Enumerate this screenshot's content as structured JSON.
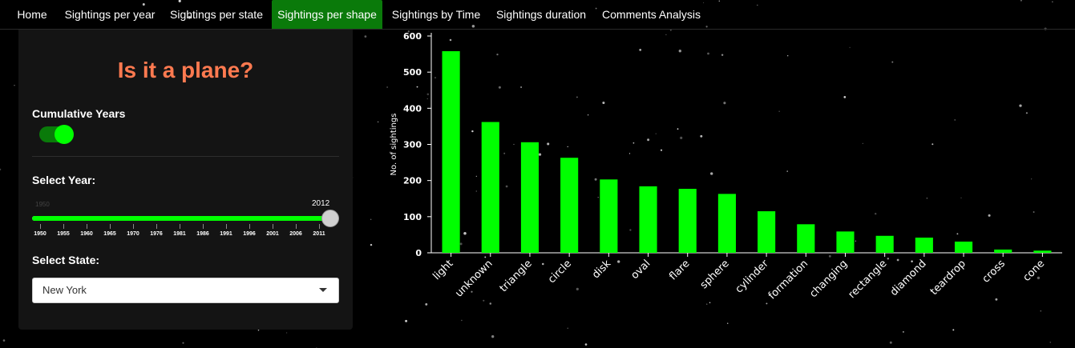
{
  "nav": {
    "tabs": [
      {
        "label": "Home"
      },
      {
        "label": "Sightings per year"
      },
      {
        "label": "Sightings per state"
      },
      {
        "label": "Sightings per shape",
        "active": true
      },
      {
        "label": "Sightings by Time"
      },
      {
        "label": "Sightings duration"
      },
      {
        "label": "Comments Analysis"
      }
    ]
  },
  "sidebar": {
    "title": "Is it a plane?",
    "cumulative_label": "Cumulative Years",
    "cumulative_on": true,
    "year_label": "Select Year:",
    "year_min_label": "1950",
    "year_value": "2012",
    "year_range": [
      1950,
      2014
    ],
    "year_ticks": [
      "1950",
      "1955",
      "1960",
      "1965",
      "1970",
      "1976",
      "1981",
      "1986",
      "1991",
      "1996",
      "2001",
      "2006",
      "2011"
    ],
    "state_label": "Select State:",
    "state_value": "New York"
  },
  "colors": {
    "accent_green": "#00ff00",
    "active_tab": "#0a7a0a",
    "title": "#ff7a50"
  },
  "chart_data": {
    "type": "bar",
    "ylabel": "No. of sightings",
    "ylim": [
      0,
      600
    ],
    "yticks": [
      0,
      100,
      200,
      300,
      400,
      500,
      600
    ],
    "categories": [
      "light",
      "unknown",
      "triangle",
      "circle",
      "disk",
      "oval",
      "flare",
      "sphere",
      "cylinder",
      "formation",
      "changing",
      "rectangle",
      "diamond",
      "teardrop",
      "cross",
      "cone"
    ],
    "values": [
      558,
      362,
      306,
      263,
      203,
      184,
      177,
      163,
      115,
      79,
      59,
      47,
      42,
      31,
      9,
      6
    ],
    "bar_color": "#00ff00",
    "grid": false
  }
}
